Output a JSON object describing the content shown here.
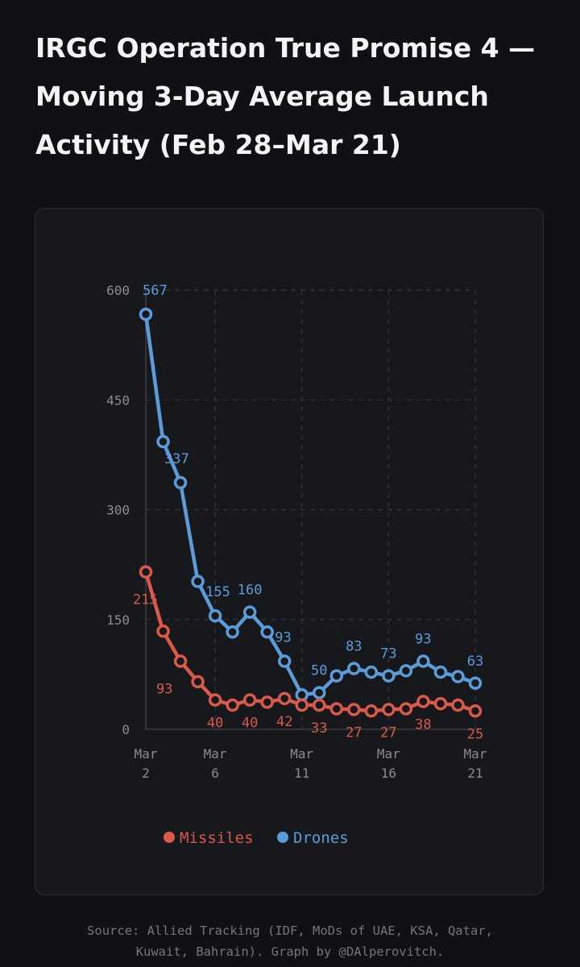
{
  "title": "IRGC Operation True Promise 4 — Moving 3-Day Average Launch Activity (Feb 28–Mar 21)",
  "footer": {
    "line1": "Source: Allied Tracking (IDF, MoDs of UAE, KSA, Qatar,",
    "line2": "Kuwait, Bahrain). Graph by @DAlperovitch."
  },
  "colors": {
    "missiles": "#d9594a",
    "drones": "#5b9bd8",
    "background": "#101114",
    "card": "#17181c",
    "grid": "#33353b",
    "axis_text": "#8a8c92"
  },
  "chart_data": {
    "type": "line",
    "x": [
      1,
      2,
      3,
      4,
      5,
      6,
      7,
      8,
      9,
      10,
      11,
      12,
      13,
      14,
      15,
      16,
      17,
      18,
      19,
      20,
      21
    ],
    "x_ticks": [
      {
        "value": 2,
        "line1": "Mar",
        "line2": "2"
      },
      {
        "value": 6,
        "line1": "Mar",
        "line2": "6"
      },
      {
        "value": 11,
        "line1": "Mar",
        "line2": "11"
      },
      {
        "value": 16,
        "line1": "Mar",
        "line2": "16"
      },
      {
        "value": 21,
        "line1": "Mar",
        "line2": "21"
      }
    ],
    "y_ticks": [
      "0",
      "150",
      "300",
      "450",
      "600"
    ],
    "xlim": [
      2,
      21
    ],
    "ylim": [
      0,
      600
    ],
    "grid": true,
    "legend_position": "bottom-center",
    "series": [
      {
        "name": "Drones",
        "color": "#5b9bd8",
        "x": [
          2,
          3,
          4,
          5,
          6,
          7,
          8,
          9,
          10,
          11,
          12,
          13,
          14,
          15,
          16,
          17,
          18,
          19,
          20,
          21
        ],
        "values": [
          567,
          393,
          337,
          202,
          155,
          133,
          160,
          133,
          93,
          47,
          50,
          73,
          83,
          78,
          73,
          80,
          93,
          78,
          72,
          63
        ],
        "labels": [
          {
            "index": 0,
            "text": "567"
          },
          {
            "index": 2,
            "text": "337"
          },
          {
            "index": 4,
            "text": "155"
          },
          {
            "index": 6,
            "text": "160"
          },
          {
            "index": 8,
            "text": "93"
          },
          {
            "index": 10,
            "text": "50"
          },
          {
            "index": 12,
            "text": "83"
          },
          {
            "index": 14,
            "text": "73"
          },
          {
            "index": 16,
            "text": "93"
          },
          {
            "index": 19,
            "text": "63"
          }
        ]
      },
      {
        "name": "Missiles",
        "color": "#d9594a",
        "x": [
          2,
          3,
          4,
          5,
          6,
          7,
          8,
          9,
          10,
          11,
          12,
          13,
          14,
          15,
          16,
          17,
          18,
          19,
          20,
          21
        ],
        "values": [
          215,
          134,
          93,
          65,
          40,
          33,
          40,
          37,
          42,
          33,
          33,
          28,
          27,
          25,
          27,
          28,
          38,
          35,
          33,
          25
        ],
        "labels": [
          {
            "index": 0,
            "text": "215"
          },
          {
            "index": 2,
            "text": "93"
          },
          {
            "index": 4,
            "text": "40"
          },
          {
            "index": 6,
            "text": "40"
          },
          {
            "index": 8,
            "text": "42"
          },
          {
            "index": 10,
            "text": "33"
          },
          {
            "index": 12,
            "text": "27"
          },
          {
            "index": 14,
            "text": "27"
          },
          {
            "index": 16,
            "text": "38"
          },
          {
            "index": 19,
            "text": "25"
          }
        ]
      }
    ],
    "legend": [
      {
        "name": "Missiles",
        "color": "#d9594a"
      },
      {
        "name": "Drones",
        "color": "#5b9bd8"
      }
    ]
  }
}
